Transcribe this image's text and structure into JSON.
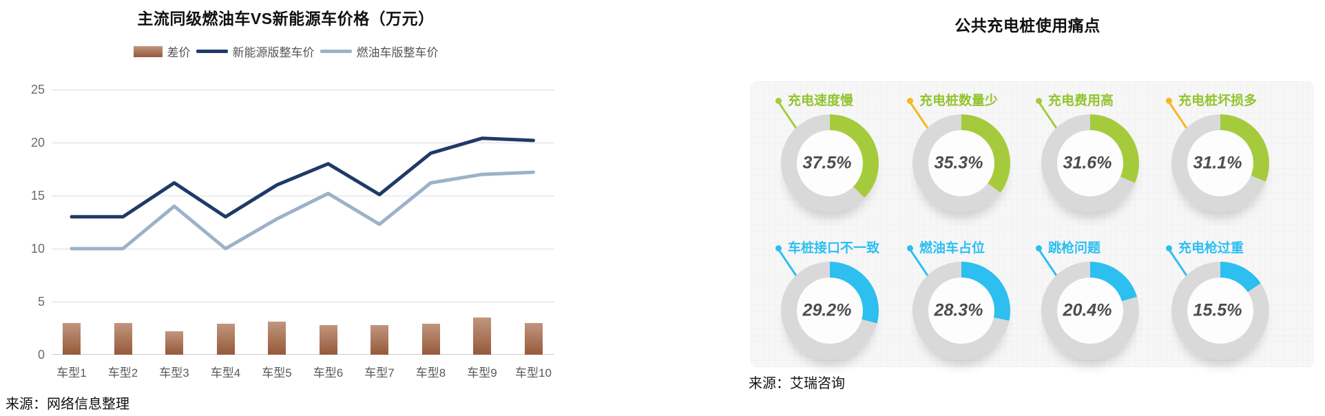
{
  "chart_data": [
    {
      "type": "bar",
      "title": "主流同级燃油车VS新能源车价格（万元）",
      "source": "来源：网络信息整理",
      "categories": [
        "车型1",
        "车型2",
        "车型3",
        "车型4",
        "车型5",
        "车型6",
        "车型7",
        "车型8",
        "车型9",
        "车型10"
      ],
      "series": [
        {
          "name": "差价",
          "kind": "bar",
          "color_top": "#c0967e",
          "color_bottom": "#96593a",
          "values": [
            3.0,
            3.0,
            2.2,
            2.9,
            3.1,
            2.8,
            2.8,
            2.9,
            3.5,
            3.0
          ]
        },
        {
          "name": "新能源版整车价",
          "kind": "line",
          "color": "#1f3a68",
          "values": [
            13,
            13,
            16.2,
            13,
            16,
            18,
            15.1,
            19,
            20.4,
            20.2
          ]
        },
        {
          "name": "燃油车版整车价",
          "kind": "line",
          "color": "#9db1c9",
          "values": [
            10,
            10,
            14,
            10,
            12.8,
            15.2,
            12.3,
            16.2,
            17,
            17.2
          ]
        }
      ],
      "ylim": [
        0,
        25
      ],
      "y_ticks": [
        25,
        20,
        15,
        10,
        5,
        0
      ],
      "grid": true,
      "legend_position": "top"
    },
    {
      "type": "pie",
      "title": "公共充电桩使用痛点",
      "source": "来源：艾瑞咨询",
      "items": [
        {
          "label": "充电速度慢",
          "value": 37.5,
          "display": "37.5%",
          "theme": "green",
          "dot": "green"
        },
        {
          "label": "充电桩数量少",
          "value": 35.3,
          "display": "35.3%",
          "theme": "green",
          "dot": "yellow"
        },
        {
          "label": "充电费用高",
          "value": 31.6,
          "display": "31.6%",
          "theme": "green",
          "dot": "green"
        },
        {
          "label": "充电桩坏损多",
          "value": 31.1,
          "display": "31.1%",
          "theme": "green",
          "dot": "yellow"
        },
        {
          "label": "车桩接口不一致",
          "value": 29.2,
          "display": "29.2%",
          "theme": "blue",
          "dot": "blue"
        },
        {
          "label": "燃油车占位",
          "value": 28.3,
          "display": "28.3%",
          "theme": "blue",
          "dot": "blue"
        },
        {
          "label": "跳枪问题",
          "value": 20.4,
          "display": "20.4%",
          "theme": "blue",
          "dot": "blue"
        },
        {
          "label": "充电枪过重",
          "value": 15.5,
          "display": "15.5%",
          "theme": "blue",
          "dot": "blue"
        }
      ],
      "ring_color": "#d9d9d9",
      "theme_colors": {
        "green": "#a5cb3d",
        "blue": "#2cbff0",
        "yellow": "#f6b81e"
      },
      "label_colors": {
        "green": "#93c42f",
        "blue": "#2cbff0"
      }
    }
  ],
  "axis": {
    "text_color": "#666666",
    "grid_color": "#dcdcdc"
  }
}
